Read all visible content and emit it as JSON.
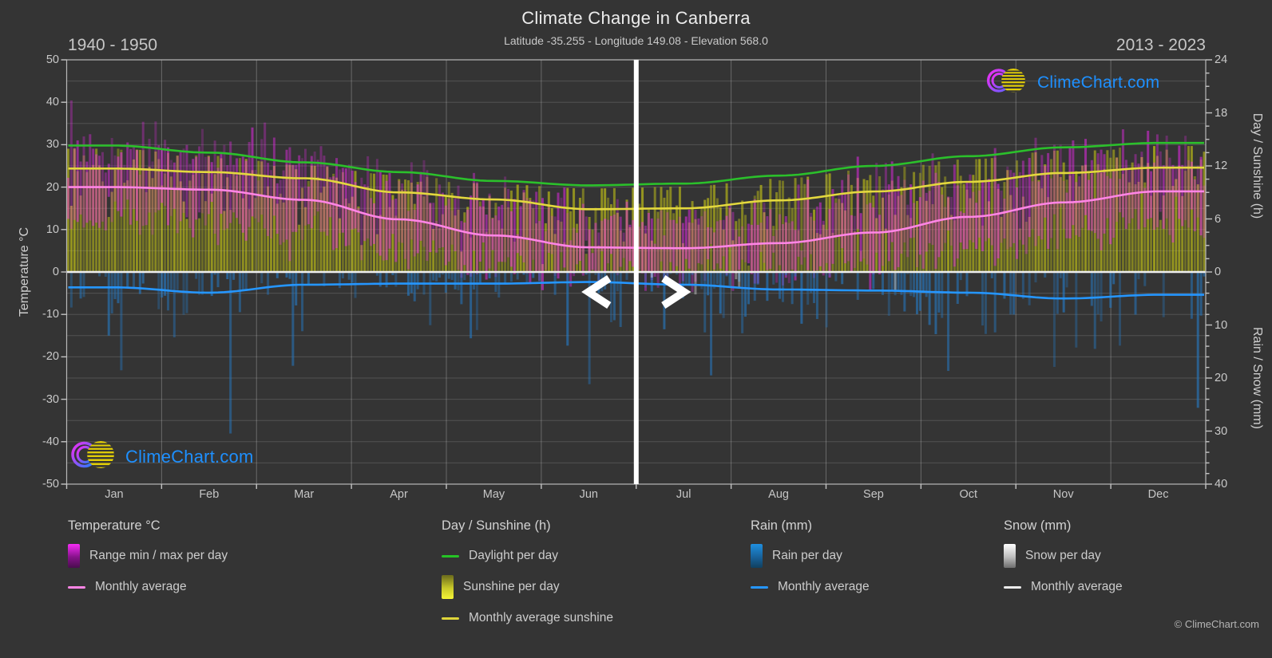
{
  "header": {
    "title": "Climate Change in Canberra",
    "subtitle": "Latitude -35.255 - Longitude 149.08 - Elevation 568.0",
    "period_left": "1940 - 1950",
    "period_right": "2013 - 2023"
  },
  "brand": {
    "name": "ClimeChart.com"
  },
  "footer": {
    "copyright": "© ClimeChart.com"
  },
  "axes": {
    "left": {
      "title": "Temperature °C",
      "ticks": [
        50,
        40,
        30,
        20,
        10,
        0,
        -10,
        -20,
        -30,
        -40,
        -50
      ]
    },
    "right_top": {
      "title": "Day / Sunshine (h)",
      "ticks": [
        24,
        18,
        12,
        6,
        0
      ]
    },
    "right_bottom": {
      "title": "Rain / Snow (mm)",
      "ticks": [
        10,
        20,
        30,
        40
      ]
    },
    "x": {
      "months": [
        "Jan",
        "Feb",
        "Mar",
        "Apr",
        "May",
        "Jun",
        "Jul",
        "Aug",
        "Sep",
        "Oct",
        "Nov",
        "Dec"
      ]
    }
  },
  "chart_data": {
    "type": "bar",
    "title": "Climate Change in Canberra",
    "subtitle": "Latitude -35.255 - Longitude 149.08 - Elevation 568.0",
    "categories": [
      "Jan",
      "Feb",
      "Mar",
      "Apr",
      "May",
      "Jun",
      "Jul",
      "Aug",
      "Sep",
      "Oct",
      "Nov",
      "Dec"
    ],
    "comparison": {
      "left_period": "1940 - 1950",
      "right_period": "2013 - 2023",
      "divider_day_of_year": 182,
      "note": "Jan-Jun shows 1940-1950 daily data, Jul-Dec shows 2013-2023 daily data; slider divider at end of June"
    },
    "axis_ranges": {
      "temperature_c": [
        -50,
        50
      ],
      "day_sunshine_h": [
        0,
        24
      ],
      "rain_snow_mm": [
        0,
        40
      ],
      "grid": "horizontal every 5°C, vertical at month boundaries"
    },
    "series": [
      {
        "name": "Daylight per day",
        "kind": "line",
        "unit": "h",
        "color": "#2bc02b",
        "monthly": [
          14.3,
          13.5,
          12.4,
          11.3,
          10.3,
          9.8,
          10.0,
          10.9,
          12.0,
          13.1,
          14.1,
          14.6
        ]
      },
      {
        "name": "Monthly average sunshine",
        "kind": "line",
        "unit": "h",
        "color": "#e3d83e",
        "monthly": [
          11.7,
          11.3,
          10.6,
          9.0,
          8.2,
          7.1,
          7.2,
          8.1,
          9.1,
          10.2,
          11.2,
          11.8
        ]
      },
      {
        "name": "Monthly average temperature",
        "kind": "line",
        "unit": "°C",
        "color": "#ff85e6",
        "monthly": [
          20.0,
          19.4,
          17.0,
          12.4,
          8.6,
          5.8,
          5.6,
          6.8,
          9.3,
          13.0,
          16.4,
          19.0
        ]
      },
      {
        "name": "Monthly average rain",
        "kind": "line",
        "unit": "mm/day",
        "color": "#2596ff",
        "monthly": [
          2.9,
          3.9,
          2.4,
          2.2,
          2.2,
          1.9,
          2.4,
          3.3,
          3.5,
          3.9,
          5.0,
          4.3
        ]
      },
      {
        "name": "Range min / max per day",
        "kind": "daily-bar",
        "unit": "°C",
        "color": "#fa28fa",
        "monthly_max_mean": [
          28.5,
          27.5,
          24.5,
          19.5,
          14.8,
          11.8,
          11.6,
          13.2,
          16.5,
          20.5,
          24.5,
          27.5
        ],
        "monthly_min_mean": [
          12.8,
          12.6,
          10.0,
          5.5,
          2.0,
          0.2,
          -0.3,
          0.6,
          3.2,
          6.5,
          9.5,
          11.8
        ]
      },
      {
        "name": "Sunshine per day",
        "kind": "daily-bar",
        "unit": "h",
        "color": "#cdcd14",
        "monthly_mean": [
          11.7,
          11.3,
          10.6,
          9.0,
          8.2,
          7.1,
          7.2,
          8.1,
          9.1,
          10.2,
          11.2,
          11.8
        ]
      },
      {
        "name": "Rain per day",
        "kind": "daily-bar",
        "unit": "mm",
        "color": "#2676bc",
        "monthly_mean": [
          2.9,
          3.9,
          2.4,
          2.2,
          2.2,
          1.9,
          2.4,
          3.3,
          3.5,
          3.9,
          5.0,
          4.3
        ]
      },
      {
        "name": "Snow per day",
        "kind": "daily-bar",
        "unit": "mm",
        "color": "#e6e6e6",
        "monthly_mean": [
          0,
          0,
          0,
          0,
          0,
          0.1,
          0.1,
          0.1,
          0,
          0,
          0,
          0
        ]
      }
    ]
  },
  "legend": {
    "groups": [
      {
        "title": "Temperature °C",
        "items": [
          {
            "label": "Range min / max per day"
          },
          {
            "label": "Monthly average"
          }
        ]
      },
      {
        "title": "Day / Sunshine (h)",
        "items": [
          {
            "label": "Daylight per day"
          },
          {
            "label": "Sunshine per day"
          },
          {
            "label": "Monthly average sunshine"
          }
        ]
      },
      {
        "title": "Rain (mm)",
        "items": [
          {
            "label": "Rain per day"
          },
          {
            "label": "Monthly average"
          }
        ]
      },
      {
        "title": "Snow (mm)",
        "items": [
          {
            "label": "Snow per day"
          },
          {
            "label": "Monthly average"
          }
        ]
      }
    ]
  },
  "colors": {
    "background": "#343434",
    "text": "#cccccc",
    "temp_bar": "#fa28fa",
    "temp_line": "#ff85e6",
    "daylight_line": "#2bc02b",
    "sunshine_bar": "#cdcd14",
    "sunshine_line": "#e3d83e",
    "rain_bar": "#2676bc",
    "rain_line": "#2596ff",
    "snow_bar": "#e6e6e6",
    "divider": "#ffffff",
    "brand_blue": "#1e90ff"
  }
}
